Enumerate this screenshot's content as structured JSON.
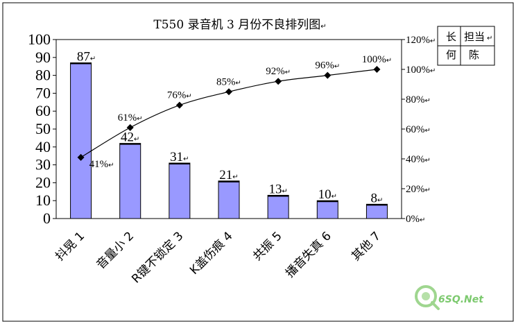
{
  "para_mark": "↵",
  "owner_table": {
    "header": [
      "长",
      "担当"
    ],
    "row": [
      "何",
      "陈"
    ]
  },
  "watermark": {
    "text": "6SQ.Net",
    "color": "#7cc96e"
  },
  "colors": {
    "bar_fill": "#9999ff",
    "bar_stroke": "#000000",
    "line": "#000000",
    "marker": "#000000"
  },
  "chart_data": {
    "type": "bar",
    "title": "T550 录音机 3 月份不良排列图",
    "categories": [
      "抖晃 1",
      "音量小 2",
      "R键不锁定 3",
      "K盖伤痕 4",
      "共振 5",
      "播音失真 6",
      "其他 7"
    ],
    "series": [
      {
        "type": "bar",
        "axis": "left",
        "values": [
          87,
          42,
          31,
          21,
          13,
          10,
          8
        ]
      },
      {
        "type": "line",
        "axis": "right",
        "values": [
          41,
          61,
          76,
          85,
          92,
          96,
          100
        ],
        "labels": [
          "41%",
          "61%",
          "76%",
          "85%",
          "92%",
          "96%",
          "100%"
        ]
      }
    ],
    "ylim": [
      0,
      100
    ],
    "yticks": [
      "0",
      "10",
      "20",
      "30",
      "40",
      "50",
      "60",
      "70",
      "80",
      "90",
      "100"
    ],
    "y2lim": [
      0,
      120
    ],
    "y2ticks": [
      "0%",
      "20%",
      "40%",
      "60%",
      "80%",
      "100%",
      "120%"
    ],
    "grid": false,
    "legend": "none"
  }
}
